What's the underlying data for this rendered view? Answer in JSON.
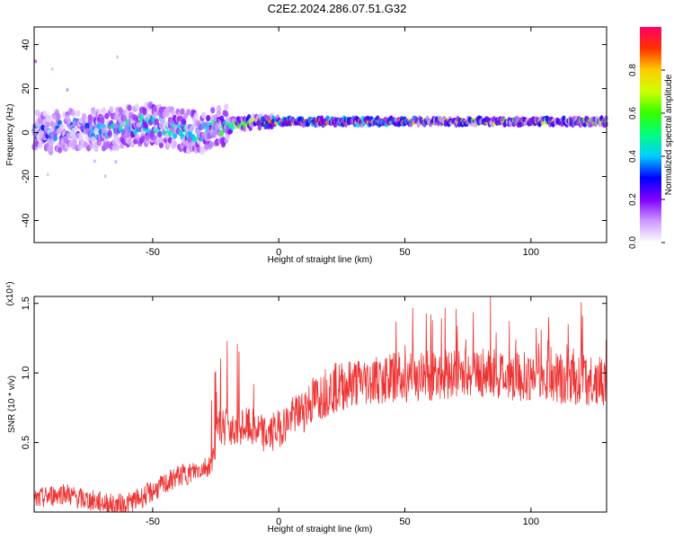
{
  "title": "C2E2.2024.286.07.51.G32",
  "chart_data": [
    {
      "type": "heatmap",
      "name": "spectrogram",
      "xlabel": "Height of straight line (km)",
      "ylabel": "Frequency (Hz)",
      "xlim": [
        -97,
        130
      ],
      "ylim": [
        -50,
        48
      ],
      "xticks": [
        -50,
        0,
        50,
        100
      ],
      "xtick_labels": [
        "-50",
        "0",
        "50",
        "100"
      ],
      "yticks": [
        -40,
        -20,
        0,
        20,
        40
      ],
      "ytick_labels": [
        "-40",
        "-20",
        "0",
        "20",
        "40"
      ],
      "colorbar": {
        "label": "Normalized spectral amplitude",
        "range": [
          0,
          1
        ],
        "ticks": [
          0.0,
          0.2,
          0.4,
          0.6,
          0.8
        ],
        "tick_labels": [
          "0.0",
          "0.2",
          "0.4",
          "0.6",
          "0.8"
        ],
        "colors": [
          "#ffffff",
          "#cc99ff",
          "#8000ff",
          "#0000ff",
          "#00ccff",
          "#00ff80",
          "#33ff00",
          "#ccff00",
          "#ffcc00",
          "#ff3300",
          "#ff0066"
        ]
      },
      "dominant_frequency_trace": {
        "x": [
          -97,
          -90,
          -80,
          -70,
          -60,
          -50,
          -40,
          -30,
          -25,
          -20,
          -15,
          -10,
          -5,
          0,
          10,
          20,
          30,
          40,
          50,
          60,
          70,
          80,
          90,
          100,
          110,
          120,
          130
        ],
        "y": [
          1,
          0,
          2,
          1,
          3,
          4,
          1,
          0,
          2,
          3,
          4,
          5,
          5,
          5,
          5,
          5,
          5,
          5,
          5,
          5,
          5,
          5,
          5,
          5,
          5,
          5,
          5
        ],
        "amplitude": [
          0.35,
          0.35,
          0.35,
          0.4,
          0.45,
          0.45,
          0.45,
          0.45,
          0.5,
          0.55,
          0.6,
          0.7,
          0.8,
          0.9,
          0.95,
          0.95,
          0.95,
          0.95,
          0.9,
          0.7,
          0.7,
          0.7,
          0.7,
          0.7,
          0.7,
          0.7,
          0.7
        ]
      }
    },
    {
      "type": "line",
      "name": "snr",
      "xlabel": "Height of straight line (km)",
      "ylabel": "SNR (10 * v/v)",
      "y_multiplier": "(x10⁴)",
      "xlim": [
        -97,
        130
      ],
      "ylim": [
        0,
        1.55
      ],
      "xticks": [
        -50,
        0,
        50,
        100
      ],
      "xtick_labels": [
        "-50",
        "0",
        "50",
        "100"
      ],
      "yticks": [
        0.5,
        1.0,
        1.5
      ],
      "ytick_labels": [
        "0.5",
        "1.0",
        "1.5"
      ],
      "color": "#ee3333",
      "envelope": {
        "x": [
          -97,
          -90,
          -85,
          -80,
          -70,
          -65,
          -60,
          -55,
          -50,
          -45,
          -40,
          -35,
          -30,
          -27,
          -25,
          -24,
          -20,
          -15,
          -10,
          -5,
          0,
          5,
          10,
          15,
          20,
          30,
          40,
          50,
          60,
          70,
          80,
          90,
          100,
          110,
          120,
          130
        ],
        "y": [
          0.08,
          0.12,
          0.14,
          0.1,
          0.07,
          0.05,
          0.06,
          0.1,
          0.15,
          0.2,
          0.26,
          0.28,
          0.32,
          0.34,
          0.45,
          0.6,
          0.62,
          0.62,
          0.6,
          0.55,
          0.6,
          0.68,
          0.75,
          0.82,
          0.88,
          0.93,
          0.96,
          0.97,
          0.98,
          1.0,
          1.0,
          0.98,
          0.97,
          0.96,
          0.95,
          0.93
        ]
      },
      "peaks": [
        {
          "x": -20.5,
          "y": 1.23
        },
        {
          "x": -10,
          "y": 0.92
        },
        {
          "x": 50,
          "y": 1.2
        },
        {
          "x": 66,
          "y": 1.47
        },
        {
          "x": 84,
          "y": 1.56
        },
        {
          "x": 104,
          "y": 1.31
        },
        {
          "x": 120,
          "y": 1.51
        },
        {
          "x": 128,
          "y": 1.1
        }
      ]
    }
  ]
}
